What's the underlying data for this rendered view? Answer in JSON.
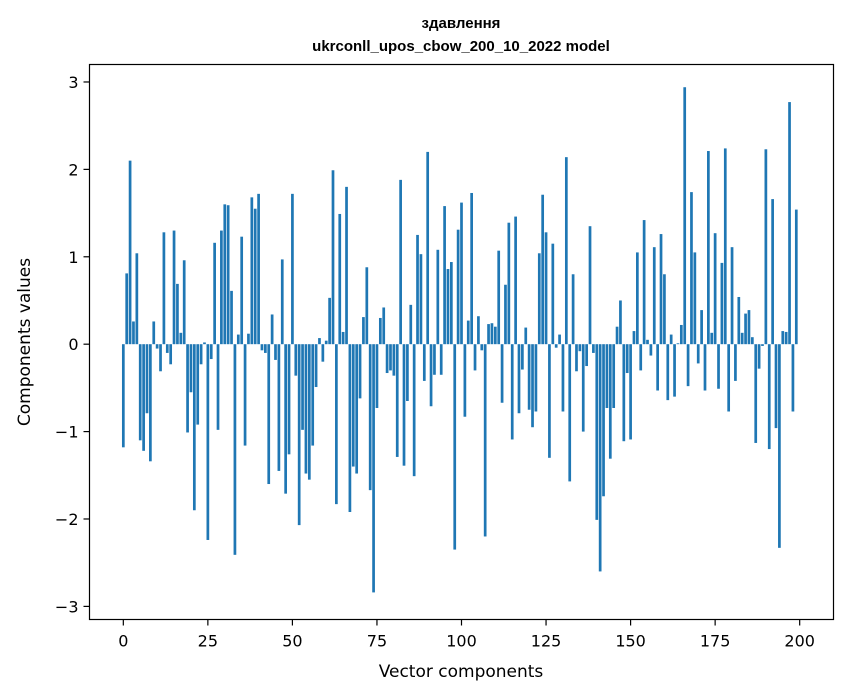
{
  "chart_data": {
    "type": "bar",
    "title": "здавлення",
    "subtitle": "ukrconll_upos_cbow_200_10_2022 model",
    "xlabel": "Vector components",
    "ylabel": "Components values",
    "xlim": [
      -10,
      210
    ],
    "ylim": [
      -3.15,
      3.2
    ],
    "xticks": [
      0,
      25,
      50,
      75,
      100,
      125,
      150,
      175,
      200
    ],
    "xtick_labels": [
      "0",
      "25",
      "50",
      "75",
      "100",
      "125",
      "150",
      "175",
      "200"
    ],
    "yticks": [
      -3,
      -2,
      -1,
      0,
      1,
      2,
      3
    ],
    "ytick_labels": [
      "−3",
      "−2",
      "−1",
      "0",
      "1",
      "2",
      "3"
    ],
    "bar_color": "#1f77b4",
    "series": [
      {
        "name": "здавлення",
        "x_start": 0,
        "values": [
          -1.18,
          0.81,
          2.1,
          0.26,
          1.04,
          -1.1,
          -1.22,
          -0.79,
          -1.34,
          0.26,
          -0.05,
          -0.31,
          1.28,
          -0.1,
          -0.23,
          1.3,
          0.69,
          0.13,
          0.96,
          -1.01,
          -0.55,
          -1.9,
          -0.92,
          -0.23,
          0.02,
          -2.24,
          -0.17,
          1.16,
          -0.98,
          1.3,
          1.6,
          1.59,
          0.61,
          -2.41,
          0.11,
          1.23,
          -1.16,
          0.12,
          1.68,
          1.55,
          1.72,
          -0.07,
          -0.1,
          -1.6,
          0.34,
          -0.18,
          -1.45,
          0.97,
          -1.71,
          -1.26,
          1.72,
          -0.36,
          -2.07,
          -0.98,
          -1.48,
          -1.55,
          -1.16,
          -0.49,
          0.07,
          -0.2,
          0.04,
          0.53,
          1.99,
          -1.83,
          1.49,
          0.14,
          1.8,
          -1.92,
          -1.4,
          -1.48,
          -0.62,
          0.31,
          0.88,
          -1.67,
          -2.84,
          -0.73,
          0.3,
          0.42,
          -0.33,
          -0.3,
          -0.36,
          -1.29,
          1.88,
          -1.39,
          -0.65,
          0.45,
          -1.51,
          1.25,
          1.03,
          -0.42,
          2.2,
          -0.71,
          -0.35,
          1.08,
          -0.35,
          1.58,
          0.86,
          0.94,
          -2.35,
          1.31,
          1.62,
          -0.83,
          0.27,
          1.73,
          -0.3,
          0.32,
          -0.07,
          -2.2,
          0.23,
          0.24,
          0.2,
          1.07,
          -0.67,
          0.68,
          1.39,
          -1.09,
          1.46,
          -0.79,
          -0.29,
          0.19,
          -0.75,
          -0.95,
          -0.77,
          1.04,
          1.71,
          1.28,
          -1.3,
          1.15,
          -0.04,
          0.11,
          -0.77,
          2.14,
          -1.57,
          0.8,
          -0.31,
          -0.08,
          -1.0,
          -0.25,
          1.35,
          -0.1,
          -2.01,
          -2.6,
          -1.74,
          -0.73,
          -1.31,
          -0.73,
          0.2,
          0.5,
          -1.11,
          -0.33,
          -1.09,
          0.15,
          1.05,
          -0.3,
          1.42,
          0.05,
          -0.13,
          1.11,
          -0.53,
          1.26,
          0.8,
          -0.64,
          0.11,
          -0.6,
          0.01,
          0.22,
          2.94,
          -0.48,
          1.74,
          1.05,
          -0.22,
          0.39,
          -0.53,
          2.21,
          0.13,
          1.27,
          -0.51,
          0.93,
          2.24,
          -0.77,
          1.11,
          -0.42,
          0.54,
          0.13,
          0.35,
          0.39,
          0.08,
          -1.13,
          -0.28,
          -0.02,
          2.23,
          -1.2,
          1.66,
          -0.96,
          -2.33,
          0.15,
          0.14,
          2.77,
          -0.77,
          1.54
        ]
      }
    ]
  }
}
